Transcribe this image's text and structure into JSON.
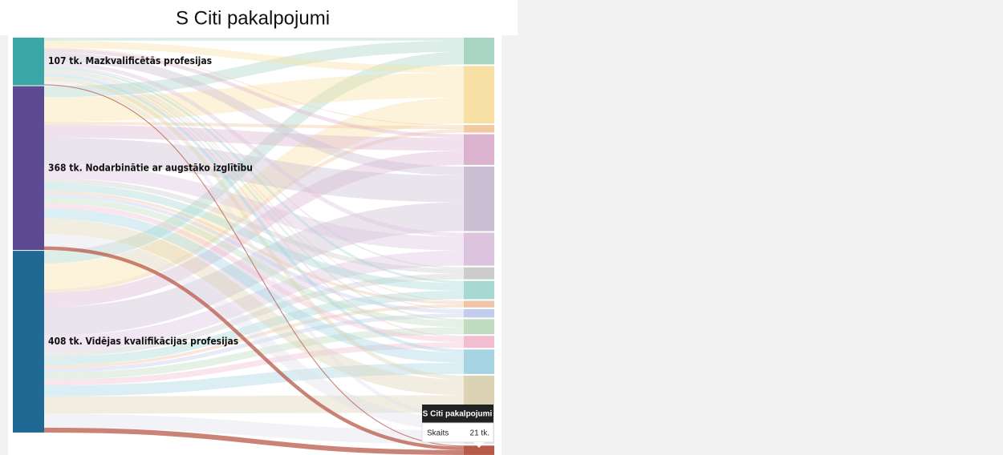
{
  "chart_data": {
    "type": "sankey",
    "title": "S Citi pakalpojumi",
    "sources": [
      {
        "label": "107 tk. Mazkvalificētās profesijas",
        "value": 107,
        "color": "#3aa6a5"
      },
      {
        "label": "368 tk. Nodarbinātie ar augstāko izglītību",
        "value": 368,
        "color": "#5c4a92"
      },
      {
        "label": "408 tk. Vidējas kvalifikācijas profesijas",
        "value": 408,
        "color": "#1f6994"
      }
    ],
    "targets": [
      {
        "color": "#a8d5c4",
        "flows": [
          7,
          25,
          28
        ]
      },
      {
        "color": "#f7e0a3",
        "flows": [
          16,
          55,
          58
        ]
      },
      {
        "color": "#f2c9a0",
        "flows": [
          2,
          7,
          8
        ]
      },
      {
        "color": "#dbb3cf",
        "flows": [
          8,
          29,
          32
        ]
      },
      {
        "color": "#cbbfd3",
        "flows": [
          20,
          60,
          65
        ]
      },
      {
        "color": "#dcc3de",
        "flows": [
          9,
          31,
          34
        ]
      },
      {
        "color": "#cccccc",
        "flows": [
          3,
          11,
          13
        ]
      },
      {
        "color": "#a6d9d4",
        "flows": [
          5,
          17,
          19
        ]
      },
      {
        "color": "#f0c4a8",
        "flows": [
          2,
          6,
          7
        ]
      },
      {
        "color": "#c2cdee",
        "flows": [
          2,
          8,
          9
        ]
      },
      {
        "color": "#c0dcc0",
        "flows": [
          4,
          14,
          16
        ]
      },
      {
        "color": "#f3bdd0",
        "flows": [
          3,
          11,
          13
        ]
      },
      {
        "color": "#a6d4e3",
        "flows": [
          7,
          23,
          25
        ]
      },
      {
        "color": "#dcd3b5",
        "flows": [
          9,
          35,
          39
        ]
      },
      {
        "color": "#e2e2ea",
        "flows": [
          8,
          28,
          31
        ]
      },
      {
        "color": "#b85a4a",
        "flows": [
          2,
          8,
          11
        ]
      }
    ],
    "highlight_target": 15,
    "tooltip": {
      "title": "S Citi pakalpojumi",
      "label": "Skaits",
      "value_label": "21 tk."
    }
  }
}
